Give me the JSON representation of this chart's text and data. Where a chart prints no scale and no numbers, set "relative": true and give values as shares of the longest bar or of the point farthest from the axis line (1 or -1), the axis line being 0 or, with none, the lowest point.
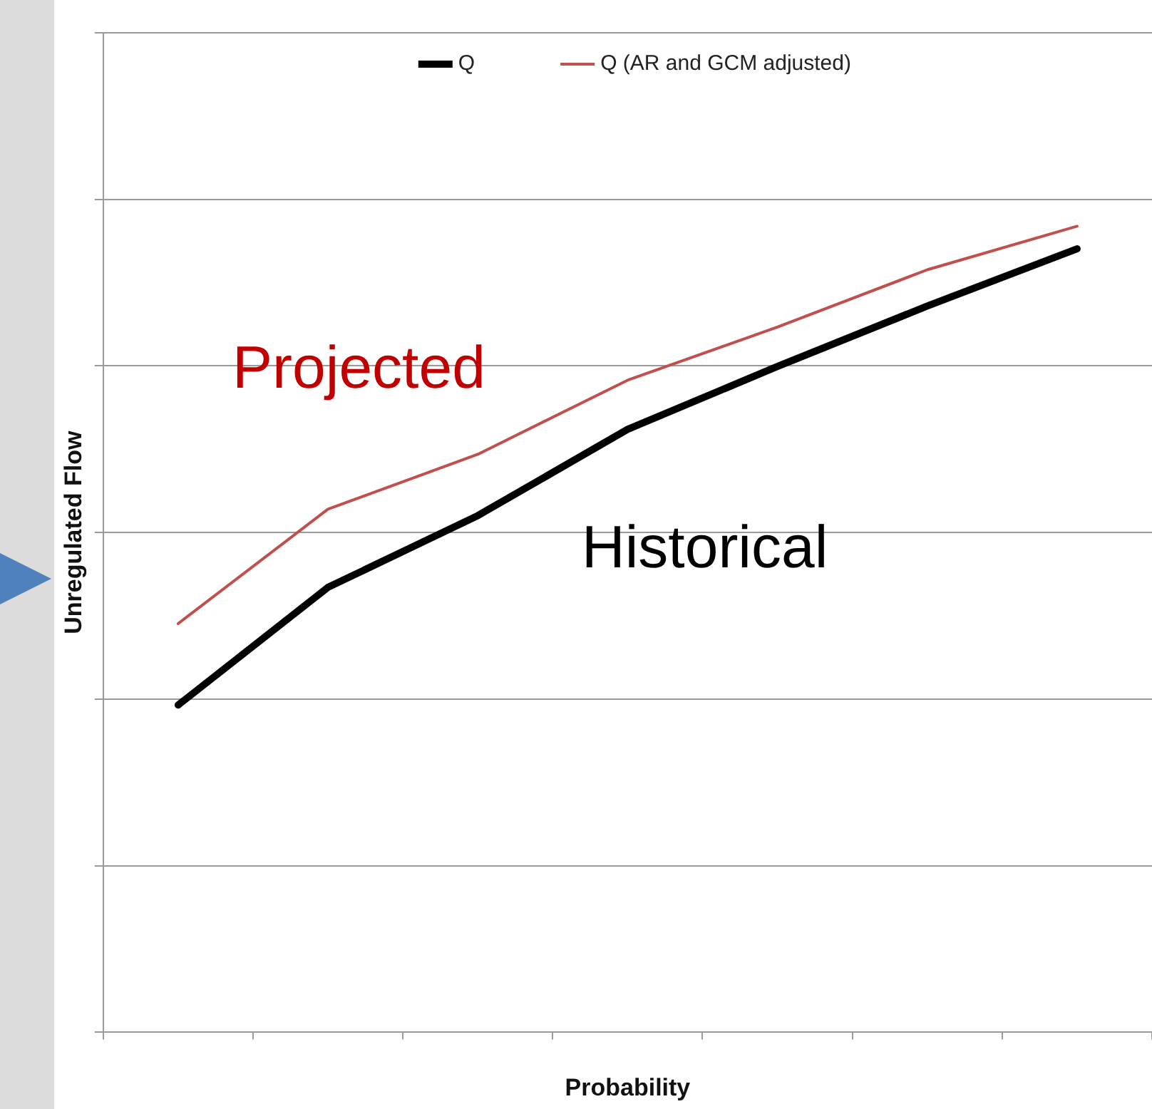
{
  "chart_data": {
    "type": "line",
    "xlabel": "Probability",
    "ylabel": "Unregulated Flow",
    "relative": true,
    "categories": [
      null,
      null,
      null,
      null,
      null,
      null,
      null
    ],
    "series": [
      {
        "name": "Q",
        "color": "#000000",
        "values": [
          0.406,
          0.552,
          0.641,
          0.748,
          0.826,
          0.901,
          0.972
        ]
      },
      {
        "name": "Q (AR and GCM adjusted)",
        "color": "#c0504d",
        "values": [
          0.507,
          0.649,
          0.717,
          0.809,
          0.875,
          0.946,
          1
        ]
      }
    ],
    "annotations": [
      "Projected",
      "Historical"
    ],
    "grid": "y",
    "legend": "top",
    "marker": "none",
    "line_style": "solid"
  }
}
